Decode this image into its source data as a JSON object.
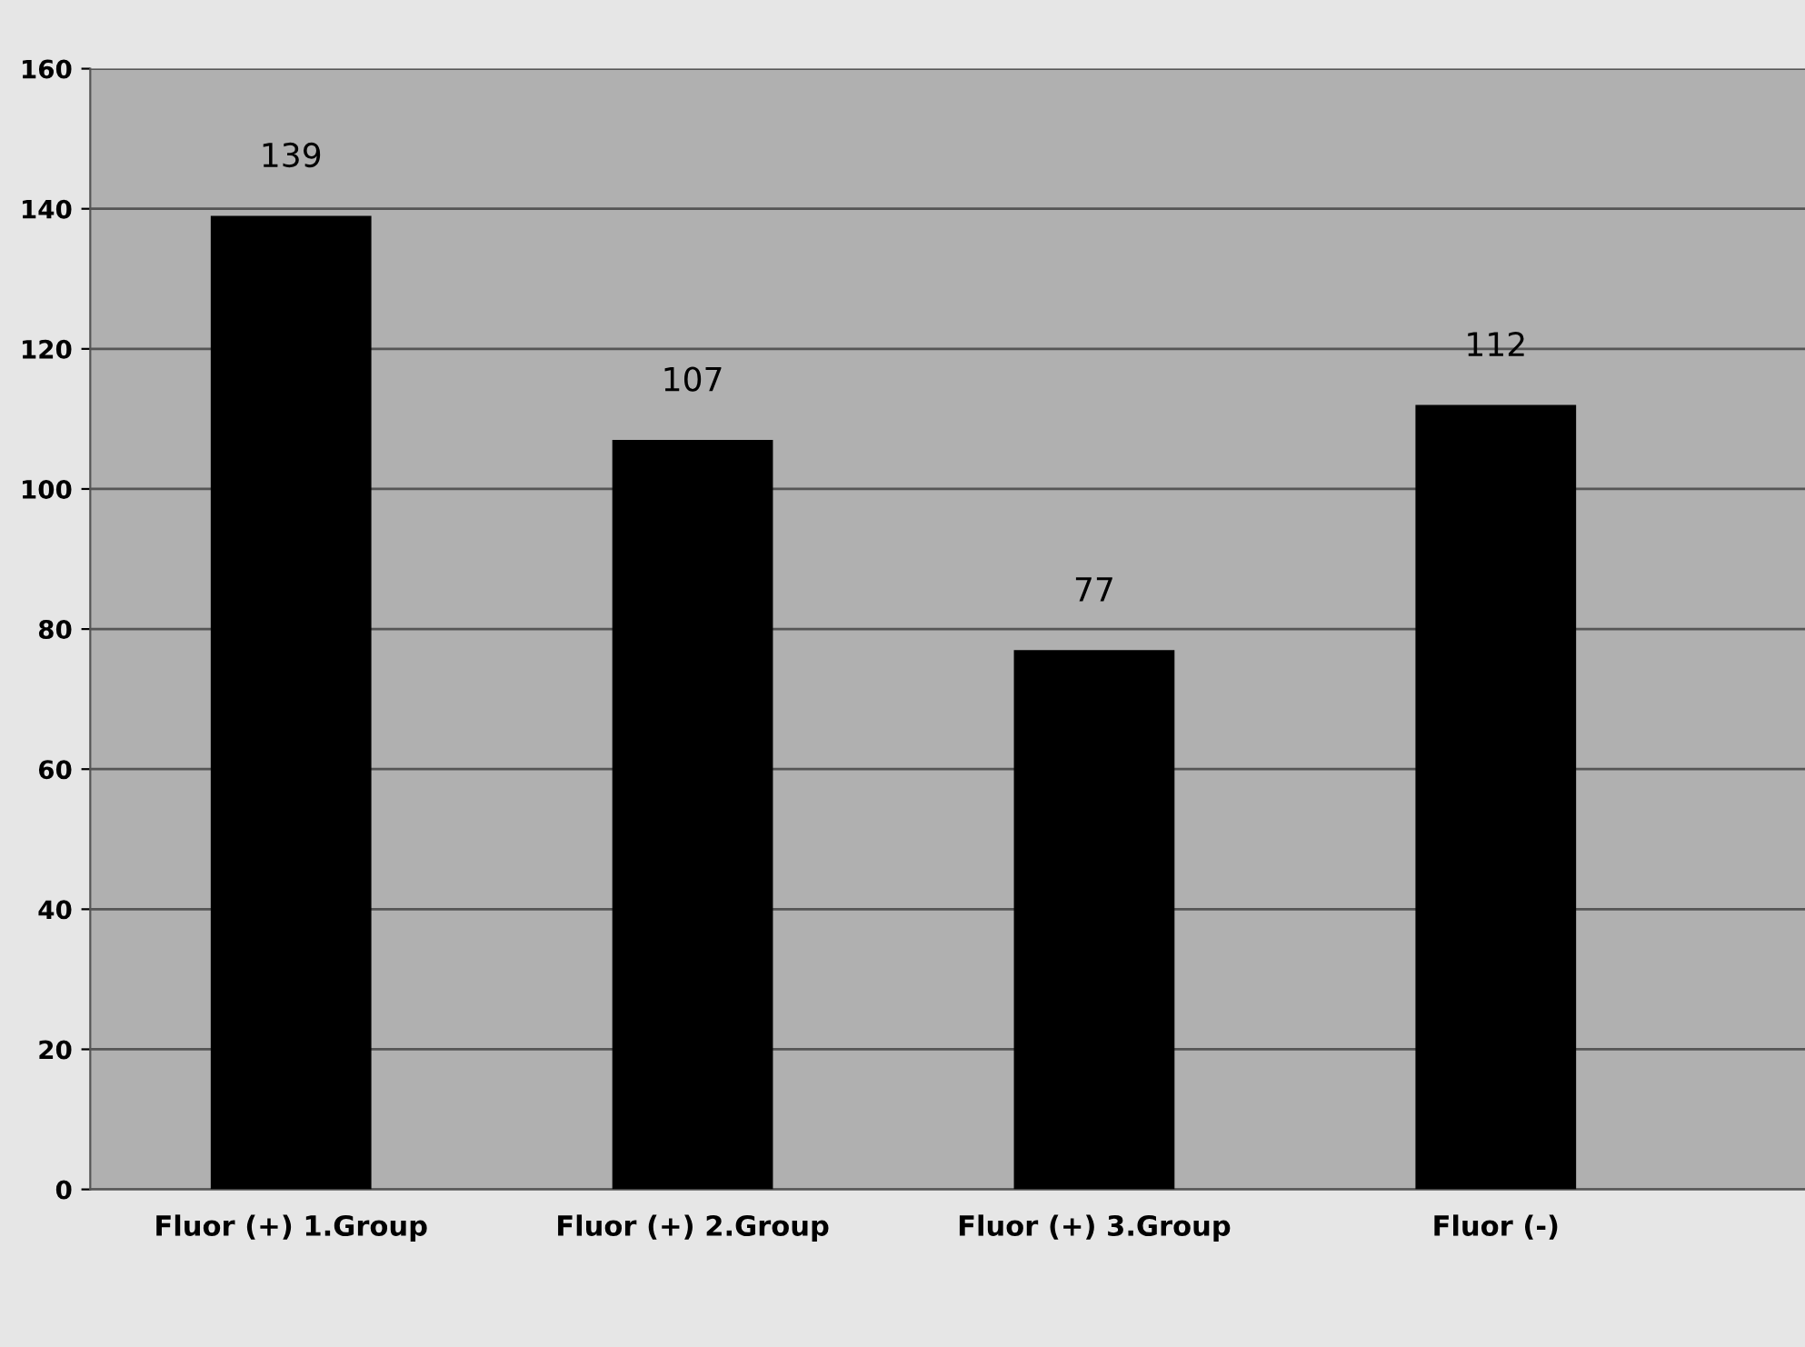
{
  "chart_data": {
    "type": "bar",
    "categories": [
      "Fluor (+) 1.Group",
      "Fluor (+) 2.Group",
      "Fluor (+) 3.Group",
      "Fluor (-)"
    ],
    "values": [
      139,
      107,
      77,
      112
    ],
    "color": "#000000",
    "ylim": [
      0,
      160
    ],
    "yticks": [
      0,
      20,
      40,
      60,
      80,
      100,
      120,
      140,
      160
    ],
    "grid": "y",
    "data_labels": true
  }
}
